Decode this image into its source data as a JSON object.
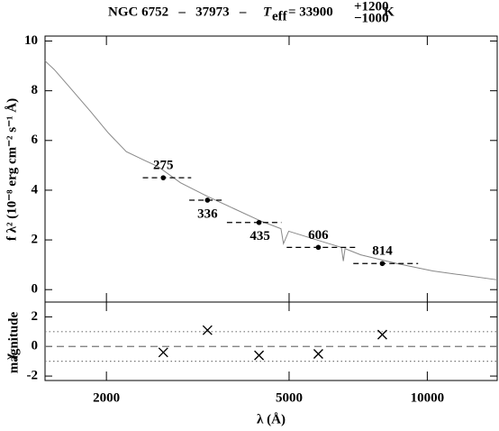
{
  "chart_data": [
    {
      "type": "line",
      "title": {
        "text": "NGC 6752   –   37973   –",
        "teff_symbol": "T",
        "teff_sub": "eff",
        "teff_value": "= 33900",
        "err_plus": "+1200",
        "err_minus": "−1000",
        "unit": "K"
      },
      "ylabel": "f λ² (10⁻⁸ erg cm⁻² s⁻¹ Å)",
      "log_x": true,
      "xlim": [
        1470,
        14200
      ],
      "ylim": [
        -0.5,
        10.2
      ],
      "yticks": [
        0,
        2,
        4,
        6,
        8,
        10
      ],
      "spectrum": {
        "color": "#888888",
        "x": [
          1470,
          1540,
          1680,
          1850,
          2020,
          2210,
          2420,
          2590,
          2900,
          3320,
          3800,
          4350,
          4800,
          4861,
          4990,
          5980,
          6500,
          6563,
          6620,
          7160,
          8580,
          10280,
          12330,
          14130
        ],
        "values": [
          9.2,
          8.85,
          8.05,
          7.15,
          6.3,
          5.55,
          5.2,
          4.95,
          4.3,
          3.75,
          3.25,
          2.75,
          2.45,
          1.85,
          2.35,
          1.9,
          1.7,
          1.15,
          1.65,
          1.4,
          1.05,
          0.75,
          0.55,
          0.4
        ]
      },
      "photometry": {
        "color": "#000000",
        "filters": [
          "275",
          "336",
          "435",
          "606",
          "814"
        ],
        "x": [
          2660,
          3320,
          4300,
          5790,
          7980
        ],
        "values": [
          4.5,
          3.6,
          2.7,
          1.7,
          1.05
        ],
        "band_min": [
          2400,
          3030,
          3660,
          4940,
          6900
        ],
        "band_max": [
          3060,
          3600,
          4810,
          7030,
          9550
        ]
      }
    },
    {
      "type": "scatter",
      "ylabel": {
        "symbol": "χ",
        "sub": "magnitude"
      },
      "xlabel": "λ (Å)",
      "log_x": true,
      "xlim": [
        1470,
        14200
      ],
      "xticks": [
        2000,
        5000,
        10000
      ],
      "ylim": [
        -2.3,
        3
      ],
      "yticks": [
        -2,
        0,
        2
      ],
      "hlines": [
        -1,
        0,
        1
      ],
      "x": [
        2660,
        3320,
        4300,
        5790,
        7980
      ],
      "values": [
        -0.4,
        1.1,
        -0.6,
        -0.5,
        0.8
      ],
      "color": "#000000"
    }
  ]
}
